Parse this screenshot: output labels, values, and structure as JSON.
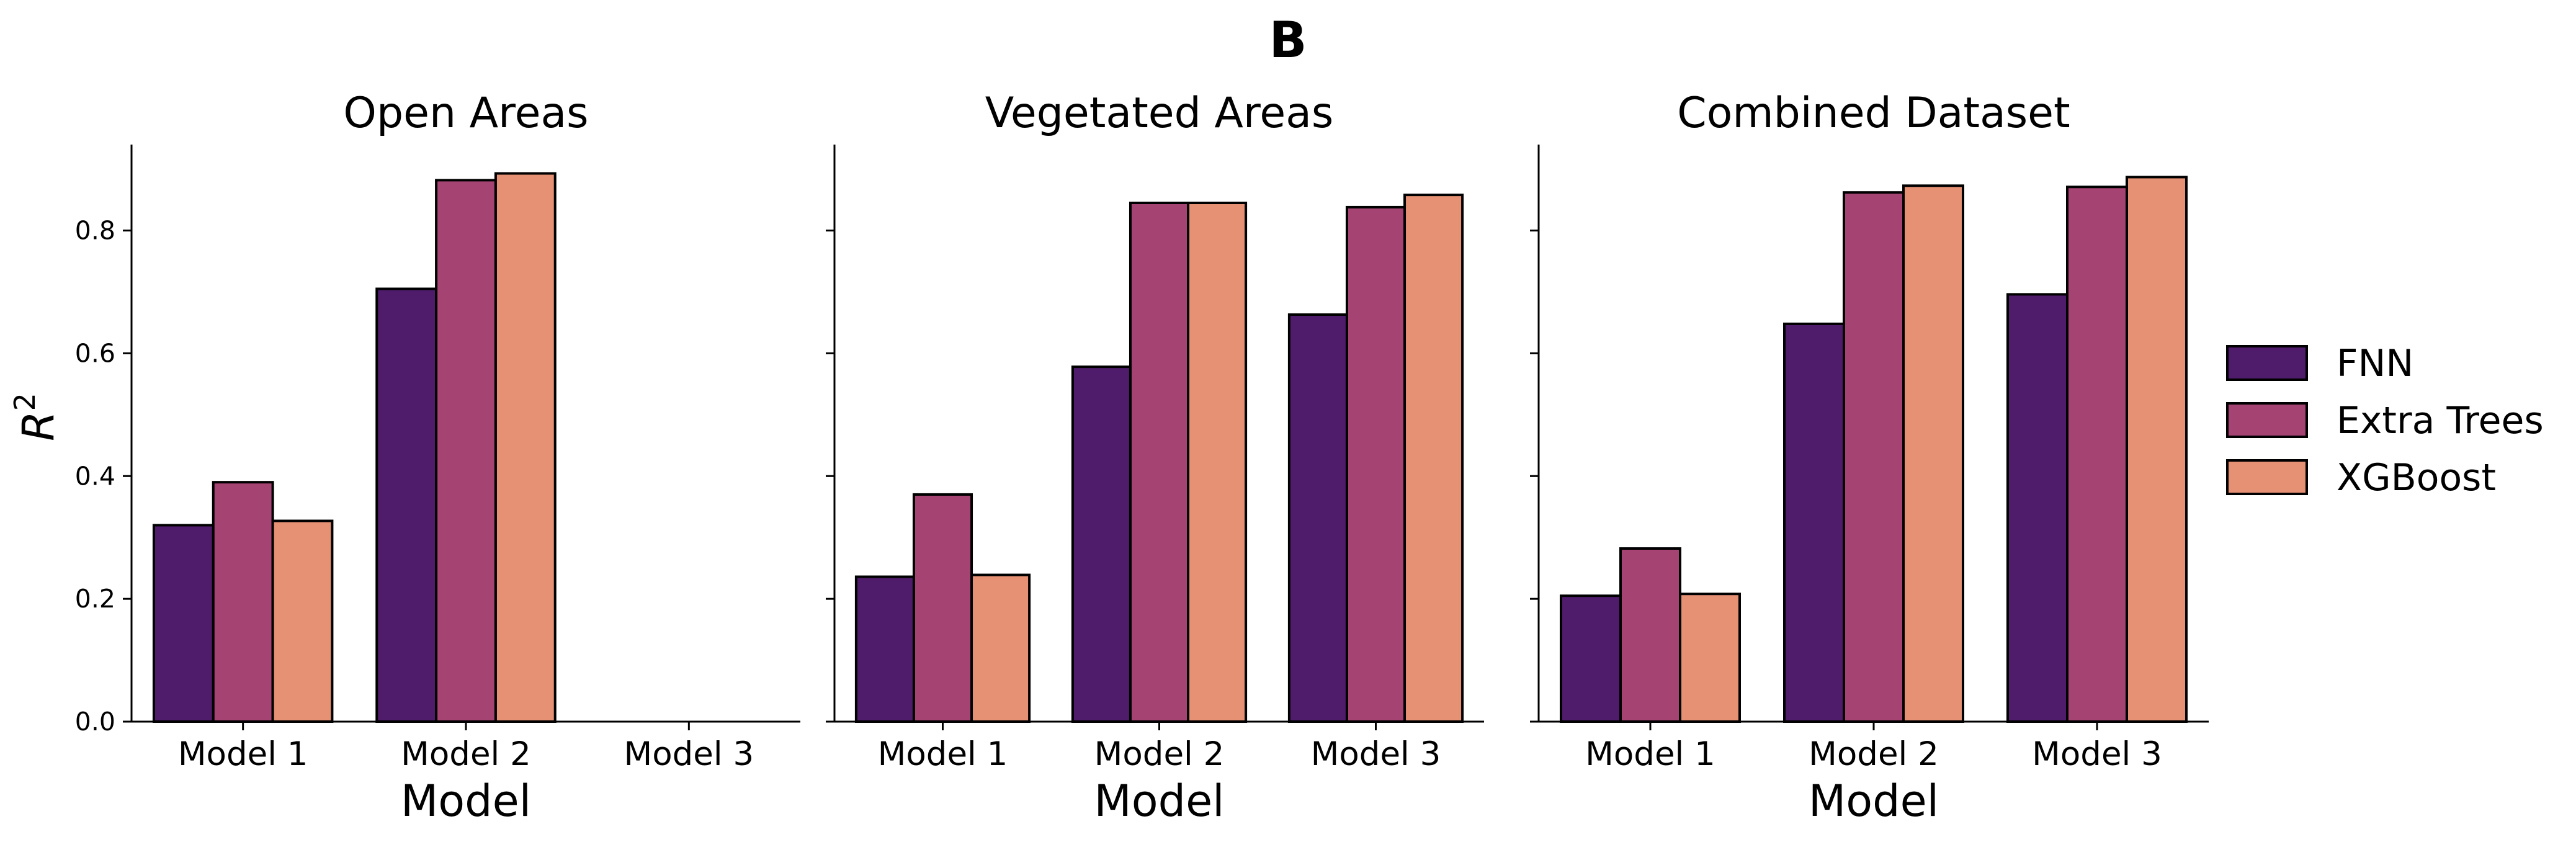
{
  "suptitle": "B",
  "colors": {
    "FNN": "#4f1c6b",
    "Extra Trees": "#a54473",
    "XGBoost": "#e69174",
    "edge": "#000000"
  },
  "chart_data": {
    "type": "bar",
    "ylabel": "$R^2$",
    "ylabel_display": "R",
    "ylabel_sup": "2",
    "ylim": [
      0,
      0.94
    ],
    "yticks": [
      0.0,
      0.2,
      0.4,
      0.6,
      0.8
    ],
    "yticklabels": [
      "0.0",
      "0.2",
      "0.4",
      "0.6",
      "0.8"
    ],
    "grid": false,
    "legend_position": "right",
    "legend": [
      "FNN",
      "Extra Trees",
      "XGBoost"
    ],
    "panels": [
      {
        "title": "Open Areas",
        "xlabel": "Model",
        "categories": [
          "Model 1",
          "Model 2",
          "Model 3"
        ],
        "series": [
          {
            "name": "FNN",
            "values": [
              0.32,
              0.705,
              null
            ]
          },
          {
            "name": "Extra Trees",
            "values": [
              0.39,
              0.882,
              null
            ]
          },
          {
            "name": "XGBoost",
            "values": [
              0.327,
              0.893,
              null
            ]
          }
        ]
      },
      {
        "title": "Vegetated Areas",
        "xlabel": "Model",
        "categories": [
          "Model 1",
          "Model 2",
          "Model 3"
        ],
        "series": [
          {
            "name": "FNN",
            "values": [
              0.236,
              0.578,
              0.663
            ]
          },
          {
            "name": "Extra Trees",
            "values": [
              0.37,
              0.845,
              0.838
            ]
          },
          {
            "name": "XGBoost",
            "values": [
              0.239,
              0.845,
              0.858
            ]
          }
        ]
      },
      {
        "title": "Combined Dataset",
        "xlabel": "Model",
        "categories": [
          "Model 1",
          "Model 2",
          "Model 3"
        ],
        "series": [
          {
            "name": "FNN",
            "values": [
              0.205,
              0.648,
              0.696
            ]
          },
          {
            "name": "Extra Trees",
            "values": [
              0.282,
              0.862,
              0.871
            ]
          },
          {
            "name": "XGBoost",
            "values": [
              0.208,
              0.873,
              0.887
            ]
          }
        ]
      }
    ]
  }
}
